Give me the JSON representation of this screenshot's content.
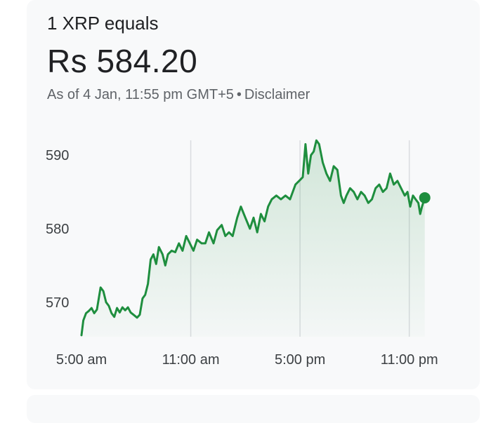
{
  "header": {
    "unit_label": "1 XRP equals",
    "price": "Rs 584.20",
    "as_of": "As of 4 Jan, 11:55 pm GMT+5",
    "separator": "•",
    "disclaimer": "Disclaimer"
  },
  "colors": {
    "line": "#1e8e3e",
    "gridline": "#dadce0",
    "card_bg": "#f8f9fa"
  },
  "chart_data": {
    "type": "line",
    "title": "",
    "xlabel": "",
    "ylabel": "",
    "y_ticks": [
      "590",
      "580",
      "570"
    ],
    "y_tick_values": [
      590,
      580,
      570
    ],
    "x_ticks": [
      "5:00 am",
      "11:00 am",
      "5:00 pm",
      "11:00 pm"
    ],
    "x_tick_hours": [
      5,
      11,
      17,
      23
    ],
    "ylim": [
      565.3,
      592.5
    ],
    "xlim_hours": [
      5.0,
      23.9
    ],
    "grid": "vertical",
    "series": [
      {
        "values": [
          [
            5.0,
            565.5
          ],
          [
            5.1,
            567.5
          ],
          [
            5.25,
            568.5
          ],
          [
            5.4,
            568.8
          ],
          [
            5.55,
            569.2
          ],
          [
            5.7,
            568.5
          ],
          [
            5.85,
            569.0
          ],
          [
            5.95,
            570.5
          ],
          [
            6.05,
            572.0
          ],
          [
            6.2,
            571.5
          ],
          [
            6.35,
            570.0
          ],
          [
            6.5,
            569.5
          ],
          [
            6.65,
            568.5
          ],
          [
            6.8,
            568.0
          ],
          [
            6.95,
            569.2
          ],
          [
            7.1,
            568.6
          ],
          [
            7.25,
            569.3
          ],
          [
            7.4,
            568.9
          ],
          [
            7.55,
            569.3
          ],
          [
            7.7,
            568.6
          ],
          [
            7.9,
            568.2
          ],
          [
            8.05,
            567.9
          ],
          [
            8.2,
            568.3
          ],
          [
            8.35,
            570.5
          ],
          [
            8.5,
            571.0
          ],
          [
            8.65,
            572.5
          ],
          [
            8.8,
            575.8
          ],
          [
            8.95,
            576.5
          ],
          [
            9.1,
            575.2
          ],
          [
            9.25,
            577.5
          ],
          [
            9.45,
            576.5
          ],
          [
            9.6,
            575.0
          ],
          [
            9.75,
            576.5
          ],
          [
            9.95,
            577.0
          ],
          [
            10.15,
            576.8
          ],
          [
            10.35,
            578.0
          ],
          [
            10.55,
            577.0
          ],
          [
            10.75,
            579.0
          ],
          [
            10.95,
            578.0
          ],
          [
            11.15,
            577.0
          ],
          [
            11.35,
            578.5
          ],
          [
            11.6,
            578.0
          ],
          [
            11.8,
            578.0
          ],
          [
            12.0,
            579.5
          ],
          [
            12.25,
            578.0
          ],
          [
            12.45,
            579.8
          ],
          [
            12.7,
            580.5
          ],
          [
            12.9,
            579.0
          ],
          [
            13.1,
            579.5
          ],
          [
            13.3,
            579.0
          ],
          [
            13.55,
            581.5
          ],
          [
            13.75,
            583.0
          ],
          [
            14.0,
            581.5
          ],
          [
            14.25,
            580.0
          ],
          [
            14.45,
            581.5
          ],
          [
            14.65,
            579.5
          ],
          [
            14.85,
            582.0
          ],
          [
            15.05,
            581.0
          ],
          [
            15.25,
            583.0
          ],
          [
            15.45,
            584.0
          ],
          [
            15.7,
            584.5
          ],
          [
            15.95,
            584.0
          ],
          [
            16.2,
            584.5
          ],
          [
            16.45,
            584.0
          ],
          [
            16.75,
            586.0
          ],
          [
            16.95,
            586.5
          ],
          [
            17.15,
            587.0
          ],
          [
            17.3,
            591.5
          ],
          [
            17.45,
            587.5
          ],
          [
            17.6,
            590.0
          ],
          [
            17.75,
            590.5
          ],
          [
            17.9,
            592.0
          ],
          [
            18.05,
            591.5
          ],
          [
            18.25,
            589.0
          ],
          [
            18.45,
            587.5
          ],
          [
            18.65,
            586.5
          ],
          [
            18.85,
            588.5
          ],
          [
            19.05,
            588.0
          ],
          [
            19.25,
            584.5
          ],
          [
            19.4,
            583.5
          ],
          [
            19.55,
            584.5
          ],
          [
            19.75,
            585.5
          ],
          [
            19.95,
            585.0
          ],
          [
            20.15,
            584.0
          ],
          [
            20.35,
            585.0
          ],
          [
            20.55,
            584.5
          ],
          [
            20.75,
            583.5
          ],
          [
            20.95,
            584.0
          ],
          [
            21.15,
            585.5
          ],
          [
            21.35,
            586.0
          ],
          [
            21.55,
            585.0
          ],
          [
            21.75,
            585.5
          ],
          [
            21.95,
            587.5
          ],
          [
            22.15,
            586.0
          ],
          [
            22.35,
            586.5
          ],
          [
            22.55,
            585.5
          ],
          [
            22.75,
            584.5
          ],
          [
            22.9,
            585.0
          ],
          [
            23.05,
            583.0
          ],
          [
            23.2,
            584.5
          ],
          [
            23.35,
            584.0
          ],
          [
            23.5,
            583.5
          ],
          [
            23.6,
            582.0
          ],
          [
            23.7,
            583.0
          ],
          [
            23.85,
            584.2
          ]
        ]
      }
    ]
  }
}
